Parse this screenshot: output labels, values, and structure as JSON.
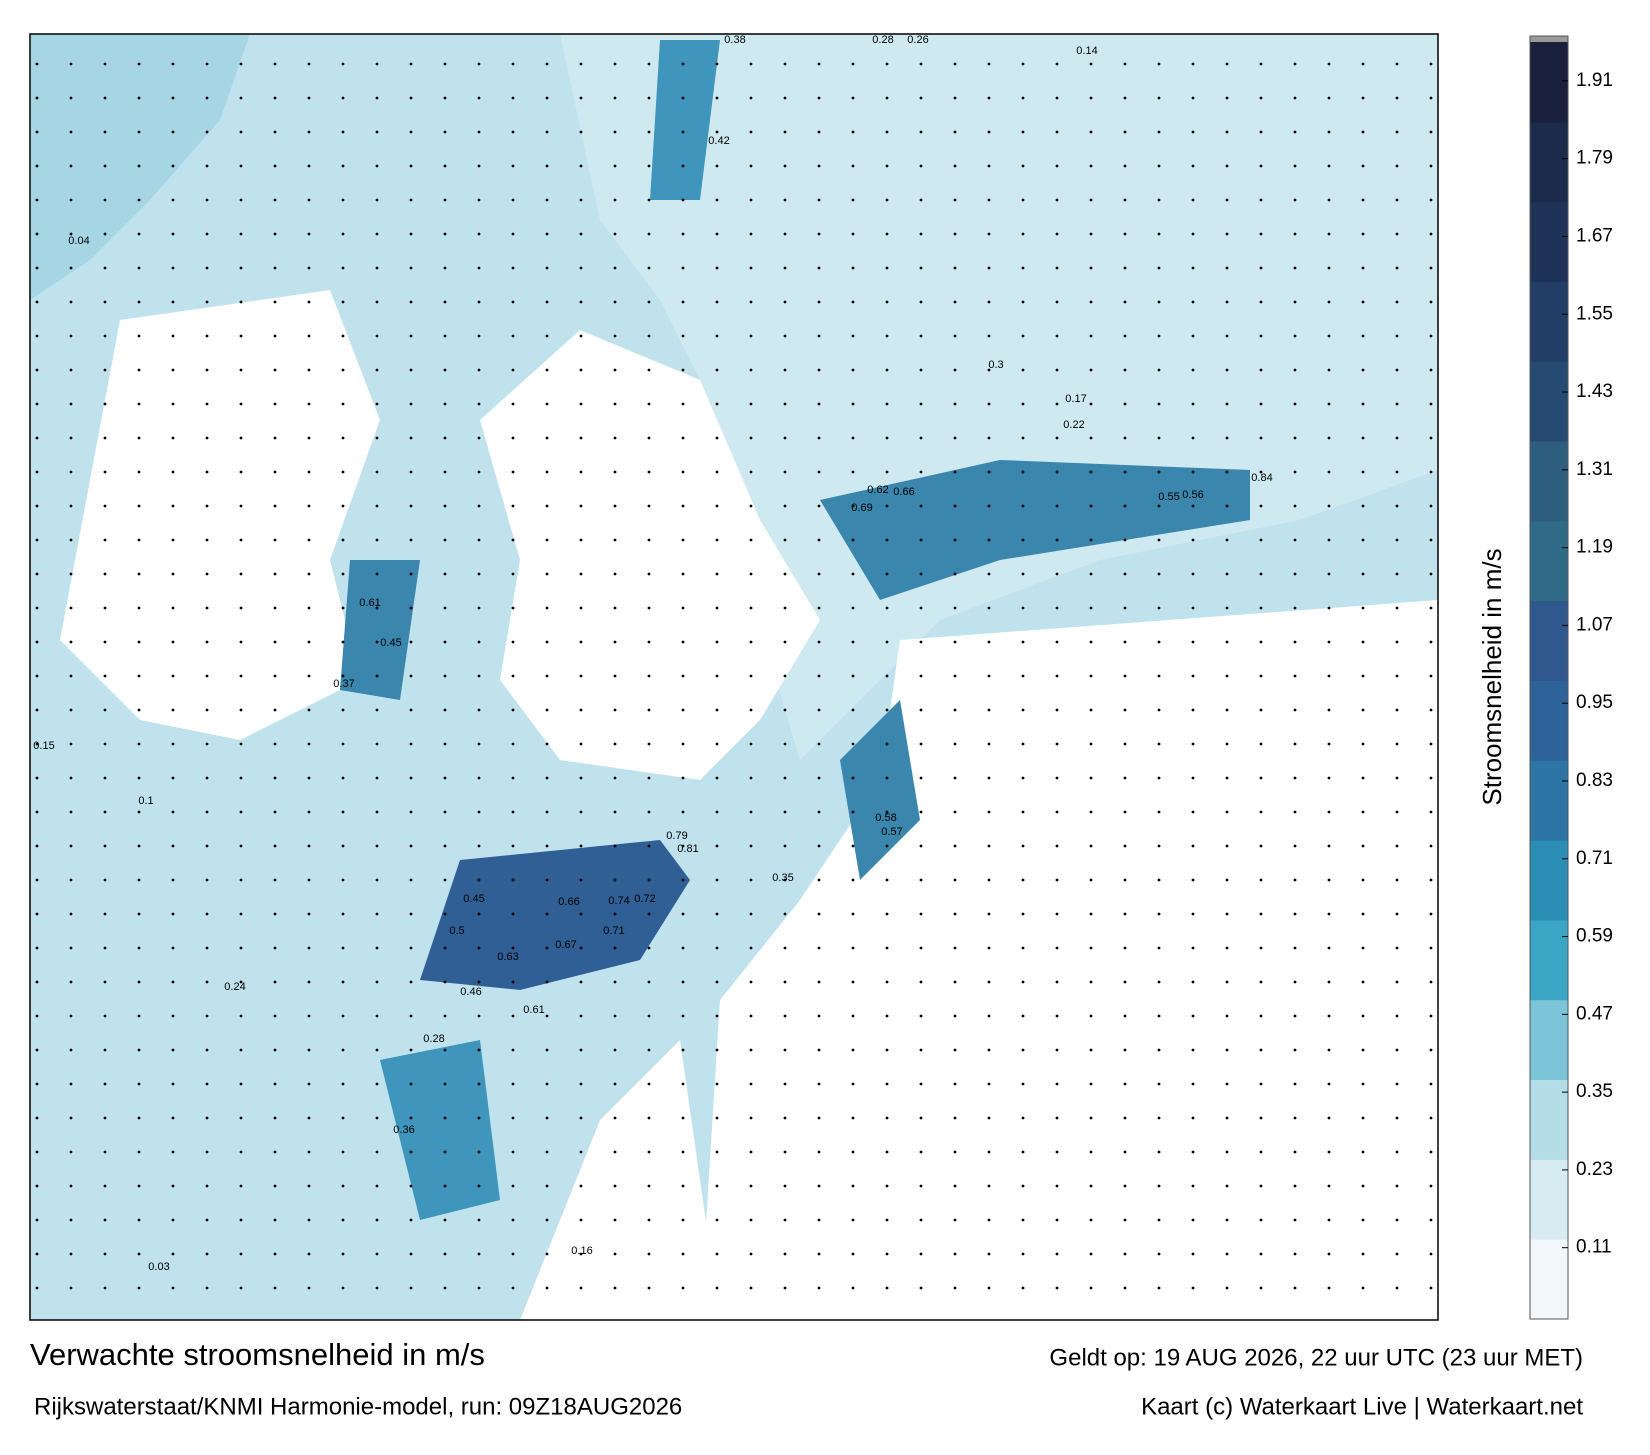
{
  "title": "Verwachte stroomsnelheid in m/s",
  "subtitle": "Rijkswaterstaat/KNMI Harmonie-model, run: 09Z18AUG2026",
  "valid_time": "Geldt op: 19 AUG 2026, 22 uur UTC (23 uur MET)",
  "credit": "Kaart (c) Waterkaart Live | Waterkaart.net",
  "colorbar": {
    "label": "Stroomsnelheid in m/s",
    "lim": [
      0,
      1.97
    ],
    "ticks": [
      0.11,
      0.23,
      0.35,
      0.47,
      0.59,
      0.71,
      0.83,
      0.95,
      1.07,
      1.19,
      1.31,
      1.43,
      1.55,
      1.67,
      1.79,
      1.91
    ],
    "colors": [
      "#f2f8fa",
      "#d6ecf2",
      "#b4dde8",
      "#7cc5d9",
      "#3aa5c4",
      "#2b8fb5",
      "#2c75a5",
      "#2d6399",
      "#31578f",
      "#2f6b86",
      "#2e5e7d",
      "#274a72",
      "#223e66",
      "#1f3359",
      "#1c2a4b",
      "#18203b"
    ]
  },
  "map_labels": [
    "0.79",
    "0.81",
    "0.72",
    "0.74",
    "0.71",
    "0.66",
    "0.67",
    "0.63",
    "0.61",
    "0.69",
    "0.66",
    "0.62",
    "0.55",
    "0.56",
    "0.84",
    "0.5",
    "0.46",
    "0.45",
    "0.61",
    "0.45",
    "0.37",
    "0.42",
    "0.38",
    "0.26",
    "0.28",
    "0.14",
    "0.3",
    "0.17",
    "0.22",
    "0.58",
    "0.57",
    "0.35",
    "0.28",
    "0.36",
    "0.16",
    "0.03",
    "0.04",
    "0.15",
    "0.1",
    "0.24"
  ]
}
